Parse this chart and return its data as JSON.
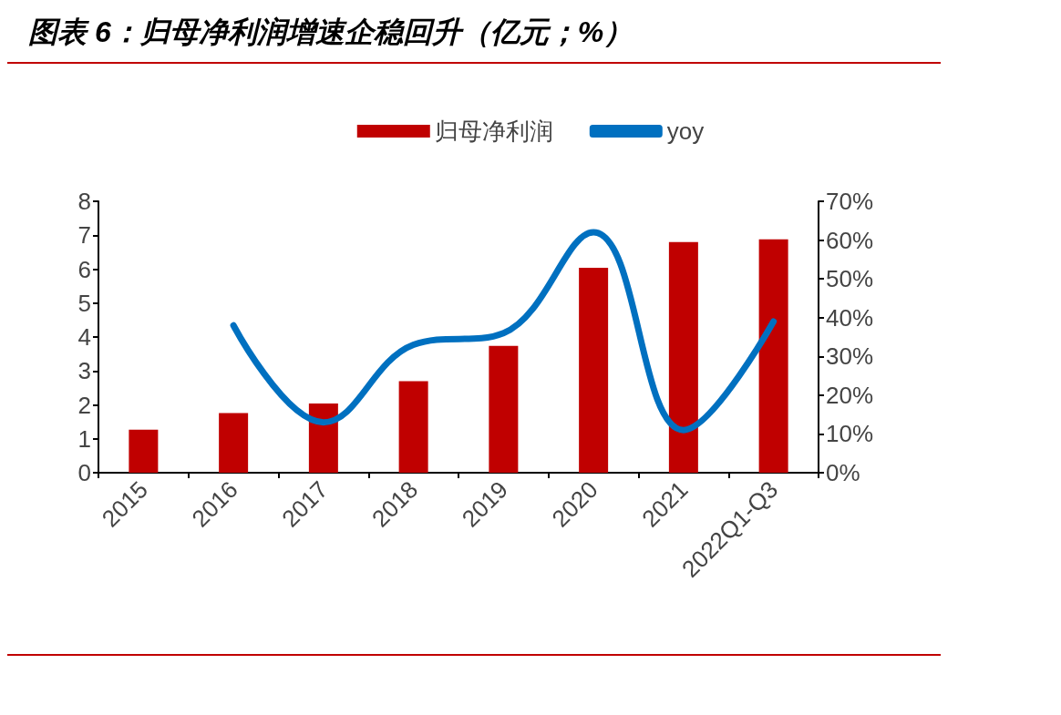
{
  "chart_data": {
    "type": "bar",
    "title": "图表 6：归母净利润增速企稳回升（亿元；%）",
    "categories": [
      "2015",
      "2016",
      "2017",
      "2018",
      "2019",
      "2020",
      "2021",
      "2022Q1-Q3"
    ],
    "series": [
      {
        "name": "归母净利润",
        "color": "#c00000",
        "values": [
          1.27,
          1.76,
          2.04,
          2.7,
          3.74,
          6.04,
          6.8,
          6.88
        ]
      },
      {
        "name": "yoy",
        "type": "line",
        "axis": "y2",
        "color": "#0070c0",
        "values": [
          null,
          38,
          13,
          33,
          36,
          62,
          11,
          39
        ]
      }
    ],
    "ylim": [
      0,
      8
    ],
    "yticks": [
      0,
      1,
      2,
      3,
      4,
      5,
      6,
      7,
      8
    ],
    "y2lim": [
      0,
      70
    ],
    "y2ticks": [
      {
        "value": 0,
        "label": "0%"
      },
      {
        "value": 10,
        "label": "10%"
      },
      {
        "value": 20,
        "label": "20%"
      },
      {
        "value": 30,
        "label": "30%"
      },
      {
        "value": 40,
        "label": "40%"
      },
      {
        "value": 50,
        "label": "50%"
      },
      {
        "value": 60,
        "label": "60%"
      },
      {
        "value": 70,
        "label": "70%"
      }
    ],
    "legend": "top",
    "grid": false,
    "marker": "none"
  }
}
